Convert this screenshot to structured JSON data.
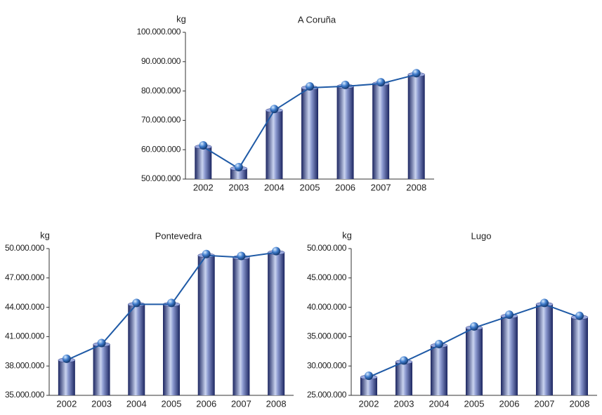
{
  "chart_data": [
    {
      "type": "bar",
      "title": "A Coruña",
      "ylabel": "kg",
      "show_line": true,
      "color": "#2b3a80",
      "line_color": "#1f5aa6",
      "categories": [
        "2002",
        "2003",
        "2004",
        "2005",
        "2006",
        "2007",
        "2008"
      ],
      "values": [
        61000000,
        53600000,
        73400000,
        81100000,
        81600000,
        82500000,
        85600000
      ],
      "ylim": [
        50000000,
        100000000
      ],
      "yticks": [
        {
          "value": 50000000,
          "label": "50.000.000"
        },
        {
          "value": 60000000,
          "label": "60.000.000"
        },
        {
          "value": 70000000,
          "label": "70.000.000"
        },
        {
          "value": 80000000,
          "label": "80.000.000"
        },
        {
          "value": 90000000,
          "label": "90.000.000"
        },
        {
          "value": 100000000,
          "label": "100.000.000"
        }
      ]
    },
    {
      "type": "bar",
      "title": "Pontevedra",
      "ylabel": "kg",
      "show_line": true,
      "color": "#2b3a80",
      "line_color": "#1f5aa6",
      "categories": [
        "2002",
        "2003",
        "2004",
        "2005",
        "2006",
        "2007",
        "2008"
      ],
      "values": [
        38600000,
        40200000,
        44300000,
        44300000,
        49300000,
        49100000,
        49600000
      ],
      "ylim": [
        35000000,
        50000000
      ],
      "yticks": [
        {
          "value": 35000000,
          "label": "35.000.000"
        },
        {
          "value": 38000000,
          "label": "38.000.000"
        },
        {
          "value": 41000000,
          "label": "41.000.000"
        },
        {
          "value": 44000000,
          "label": "44.000.000"
        },
        {
          "value": 47000000,
          "label": "47.000.000"
        },
        {
          "value": 50000000,
          "label": "50.000.000"
        }
      ]
    },
    {
      "type": "bar",
      "title": "Lugo",
      "ylabel": "kg",
      "show_line": true,
      "color": "#2b3a80",
      "line_color": "#1f5aa6",
      "categories": [
        "2002",
        "2003",
        "2004",
        "2005",
        "2006",
        "2007",
        "2008"
      ],
      "values": [
        28100000,
        30700000,
        33500000,
        36500000,
        38500000,
        40500000,
        38300000
      ],
      "ylim": [
        25000000,
        50000000
      ],
      "yticks": [
        {
          "value": 25000000,
          "label": "25.000.000"
        },
        {
          "value": 30000000,
          "label": "30.000.000"
        },
        {
          "value": 35000000,
          "label": "35.000.000"
        },
        {
          "value": 40000000,
          "label": "40.000.000"
        },
        {
          "value": 45000000,
          "label": "45.000.000"
        },
        {
          "value": 50000000,
          "label": "50.000.000"
        }
      ]
    }
  ]
}
